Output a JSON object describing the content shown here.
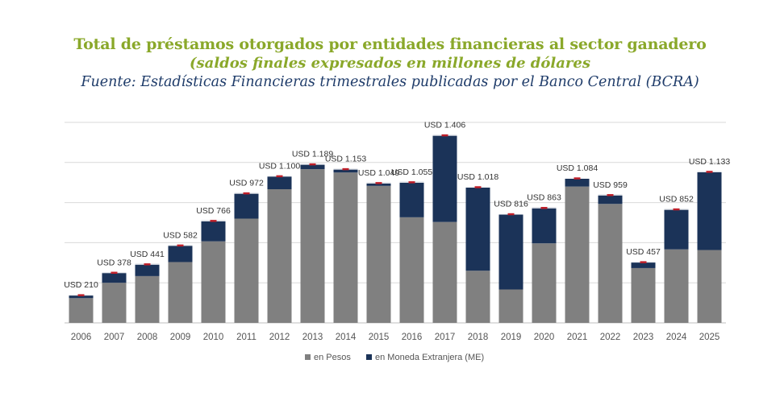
{
  "chart_data": {
    "type": "bar",
    "stacked": true,
    "title": "Total de préstamos otorgados por entidades financieras al sector ganadero",
    "subtitle": "(saldos finales expresados en millones de dólares",
    "source": "Fuente: Estadísticas Financieras trimestrales publicadas por el Banco Central (BCRA)",
    "categories": [
      "2006",
      "2007",
      "2008",
      "2009",
      "2010",
      "2011",
      "2012",
      "2013",
      "2014",
      "2015",
      "2016",
      "2017",
      "2018",
      "2019",
      "2020",
      "2021",
      "2022",
      "2023",
      "2024",
      "2025"
    ],
    "series": [
      {
        "name": "en Pesos",
        "color": "#808080",
        "values": [
          185,
          300,
          350,
          455,
          610,
          780,
          1000,
          1150,
          1125,
          1025,
          790,
          755,
          390,
          250,
          595,
          1020,
          890,
          410,
          550,
          545
        ]
      },
      {
        "name": "en Moneda Extranjera (ME)",
        "color": "#1b3358",
        "values": [
          25,
          78,
          91,
          127,
          156,
          192,
          100,
          39,
          28,
          24,
          265,
          651,
          628,
          566,
          268,
          64,
          69,
          47,
          302,
          588
        ]
      }
    ],
    "totals": [
      210,
      378,
      441,
      582,
      766,
      972,
      1100,
      1189,
      1153,
      1049,
      1055,
      1406,
      1018,
      816,
      863,
      1084,
      959,
      457,
      852,
      1133
    ],
    "labels": [
      "USD 210",
      "USD 378",
      "USD 441",
      "USD 582",
      "USD 766",
      "USD 972",
      "USD 1.100",
      "USD 1.189",
      "USD 1.153",
      "USD 1.049",
      "USD 1.055",
      "USD 1.406",
      "USD 1.018",
      "USD 816",
      "USD 863",
      "USD 1.084",
      "USD 959",
      "USD 457",
      "USD 852",
      "USD 1.133"
    ],
    "ylim": [
      0,
      1500
    ],
    "gridlines": [
      0,
      300,
      600,
      900,
      1200,
      1500
    ],
    "grid": true,
    "legend": "bottom-center",
    "marker_color": "#c0202a"
  }
}
